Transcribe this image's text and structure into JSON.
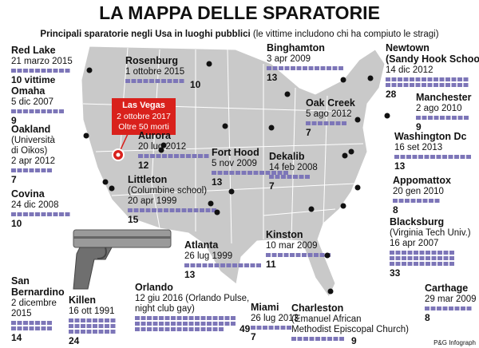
{
  "title": "LA MAPPA DELLE SPARATORIE",
  "subtitle": {
    "bold": "Principali sparatorie negli Usa in luoghi pubblici",
    "normal": "(le vittime includono chi ha compiuto le stragi)"
  },
  "credit": "P&G Infograph",
  "callout": {
    "name": "Las Vegas",
    "details": [
      "2 ottobre 2017",
      "Oltre 50 morti"
    ]
  },
  "events": [
    {
      "name": [
        "Red Lake"
      ],
      "details": [
        "21 marzo 2015"
      ],
      "victims": 10,
      "victims_label": "10 vittime"
    },
    {
      "name": [
        "Omaha"
      ],
      "details": [
        "5 dic 2007"
      ],
      "victims": 9
    },
    {
      "name": [
        "Oakland"
      ],
      "details": [
        "(Università",
        "di Oikos)",
        "2 apr 2012"
      ],
      "victims": 7
    },
    {
      "name": [
        "Covina"
      ],
      "details": [
        "24 dic 2008"
      ],
      "victims": 10
    },
    {
      "name": [
        "San",
        "Bernardino"
      ],
      "details": [
        "2 dicembre",
        "2015"
      ],
      "victims": 14
    },
    {
      "name": [
        "Killen"
      ],
      "details": [
        "16 ott 1991"
      ],
      "victims": 24
    },
    {
      "name": [
        "Rosenburg"
      ],
      "details": [
        "1 ottobre 2015"
      ],
      "victims": 10
    },
    {
      "name": [
        "Aurora"
      ],
      "details": [
        "20 lug 2012"
      ],
      "victims": 12
    },
    {
      "name": [
        "Littleton"
      ],
      "details": [
        "(Columbine school)",
        "20 apr 1999"
      ],
      "victims": 15
    },
    {
      "name": [
        "Fort Hood"
      ],
      "details": [
        "5 nov 2009"
      ],
      "victims": 13
    },
    {
      "name": [
        "Dekalib"
      ],
      "details": [
        "14 feb 2008"
      ],
      "victims": 7
    },
    {
      "name": [
        "Binghamton"
      ],
      "details": [
        "3 apr 2009"
      ],
      "victims": 13
    },
    {
      "name": [
        "Oak Creek"
      ],
      "details": [
        "5 ago 2012"
      ],
      "victims": 7
    },
    {
      "name": [
        "Newtown",
        "(Sandy Hook School)"
      ],
      "details": [
        "14 dic 2012"
      ],
      "victims": 28
    },
    {
      "name": [
        "Manchester"
      ],
      "details": [
        "2 ago 2010"
      ],
      "victims": 9
    },
    {
      "name": [
        "Washington Dc"
      ],
      "details": [
        "16 set 2013"
      ],
      "victims": 13
    },
    {
      "name": [
        "Appomattox"
      ],
      "details": [
        "20 gen 2010"
      ],
      "victims": 8
    },
    {
      "name": [
        "Blacksburg"
      ],
      "details": [
        "(Virginia Tech Univ.)",
        "16 apr 2007"
      ],
      "victims": 33
    },
    {
      "name": [
        "Carthage"
      ],
      "details": [
        "29 mar 2009"
      ],
      "victims": 8
    },
    {
      "name": [
        "Kinston"
      ],
      "details": [
        "10 mar 2009"
      ],
      "victims": 11
    },
    {
      "name": [
        "Atlanta"
      ],
      "details": [
        "26 lug 1999"
      ],
      "victims": 13
    },
    {
      "name": [
        "Orlando"
      ],
      "details": [
        "12 giu 2016 (Orlando Pulse,",
        "night club gay)"
      ],
      "victims": 49
    },
    {
      "name": [
        "Miami"
      ],
      "details": [
        "26 lug 2013"
      ],
      "victims": 7
    },
    {
      "name": [
        "Charleston"
      ],
      "details": [
        "(Emanuel African",
        "Methodist Episcopal Church)"
      ],
      "victims": 9
    }
  ]
}
